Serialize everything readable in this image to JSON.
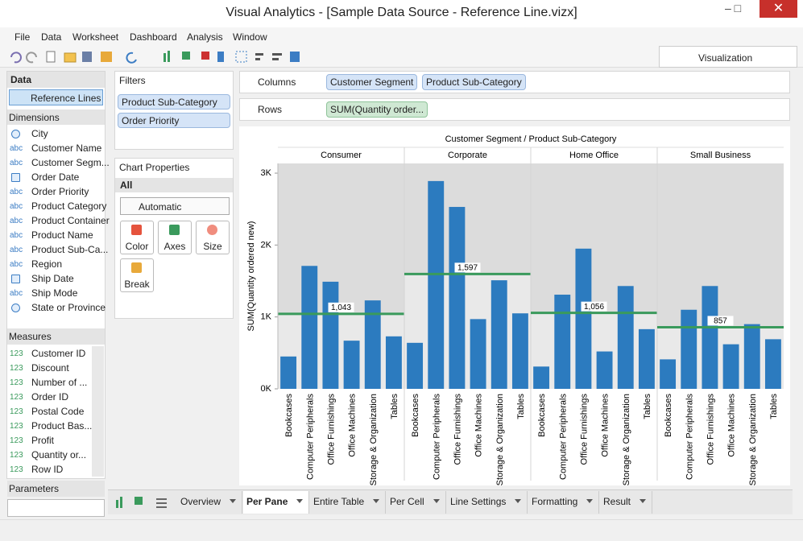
{
  "window": {
    "title": "Visual Analytics - [Sample Data Source - Reference Line.vizx]"
  },
  "menu": [
    "File",
    "Data",
    "Worksheet",
    "Dashboard",
    "Analysis",
    "Window"
  ],
  "visualization_tab": "Visualization",
  "data_panel": {
    "header": "Data",
    "source": "Reference Lines",
    "dimensions_header": "Dimensions",
    "dimensions": [
      {
        "icon": "geo",
        "label": "City"
      },
      {
        "icon": "abc",
        "label": "Customer Name"
      },
      {
        "icon": "abc",
        "label": "Customer Segm..."
      },
      {
        "icon": "date",
        "label": "Order Date"
      },
      {
        "icon": "abc",
        "label": "Order Priority"
      },
      {
        "icon": "abc",
        "label": "Product Category"
      },
      {
        "icon": "abc",
        "label": "Product Container"
      },
      {
        "icon": "abc",
        "label": "Product Name"
      },
      {
        "icon": "abc",
        "label": "Product Sub-Ca..."
      },
      {
        "icon": "abc",
        "label": "Region"
      },
      {
        "icon": "date",
        "label": "Ship Date"
      },
      {
        "icon": "abc",
        "label": "Ship Mode"
      },
      {
        "icon": "geo",
        "label": "State or Province"
      }
    ],
    "measures_header": "Measures",
    "measures": [
      {
        "icon": "123",
        "label": "Customer ID"
      },
      {
        "icon": "123",
        "label": "Discount"
      },
      {
        "icon": "123",
        "label": "Number of ..."
      },
      {
        "icon": "123",
        "label": "Order ID"
      },
      {
        "icon": "123",
        "label": "Postal Code"
      },
      {
        "icon": "123",
        "label": "Product Bas..."
      },
      {
        "icon": "123",
        "label": "Profit"
      },
      {
        "icon": "123",
        "label": "Quantity or..."
      },
      {
        "icon": "123",
        "label": "Row ID"
      }
    ],
    "parameters_header": "Parameters"
  },
  "filters": {
    "header": "Filters",
    "items": [
      "Product Sub-Category",
      "Order Priority"
    ]
  },
  "chart_properties": {
    "header": "Chart Properties",
    "scope": "All",
    "mark_type": "Automatic",
    "buttons": [
      "Color",
      "Axes",
      "Size",
      "Break"
    ]
  },
  "shelves": {
    "columns_label": "Columns",
    "columns": [
      "Customer Segment",
      "Product Sub-Category"
    ],
    "rows_label": "Rows",
    "rows": [
      "SUM(Quantity order..."
    ]
  },
  "tabs": [
    {
      "label": "Overview",
      "active": false
    },
    {
      "label": "Per Pane",
      "active": true
    },
    {
      "label": "Entire Table",
      "active": false
    },
    {
      "label": "Per Cell",
      "active": false
    },
    {
      "label": "Line Settings",
      "active": false
    },
    {
      "label": "Formatting",
      "active": false
    },
    {
      "label": "Result",
      "active": false
    }
  ],
  "chart_data": {
    "type": "bar",
    "title": "Customer Segment / Product Sub-Category",
    "ylabel": "SUM(Quantity ordered new)",
    "categories": [
      "Bookcases",
      "Computer Peripherals",
      "Office Furnishings",
      "Office Machines",
      "Storage & Organization",
      "Tables"
    ],
    "color": "#2c7bbf",
    "panes": [
      {
        "name": "Consumer",
        "values": [
          450,
          1710,
          1490,
          670,
          1230,
          730
        ]
      },
      {
        "name": "Corporate",
        "values": [
          640,
          2890,
          2530,
          970,
          1510,
          1050
        ]
      },
      {
        "name": "Home Office",
        "values": [
          310,
          1310,
          1950,
          520,
          1430,
          830
        ]
      },
      {
        "name": "Small Business",
        "values": [
          410,
          1100,
          1430,
          620,
          900,
          690
        ]
      }
    ],
    "reference_lines": {
      "color": "#3a9a5c",
      "values": [
        1043,
        1597,
        1056,
        857
      ],
      "value_labels": [
        "1,043",
        "1,597",
        "1,056",
        "857"
      ]
    },
    "ylim": [
      0,
      3135
    ],
    "yticks": [
      {
        "value": 0,
        "label": "0K"
      },
      {
        "value": 1000,
        "label": "1K"
      },
      {
        "value": 2000,
        "label": "2K"
      },
      {
        "value": 3000,
        "label": "3K"
      }
    ]
  }
}
